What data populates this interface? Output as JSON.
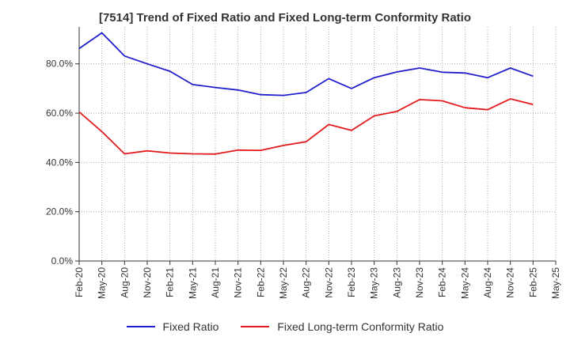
{
  "chart_data": {
    "type": "line",
    "title": "[7514]  Trend of Fixed Ratio and Fixed Long-term Conformity Ratio",
    "xlabel": "",
    "ylabel": "",
    "x": [
      "Feb-20",
      "May-20",
      "Aug-20",
      "Nov-20",
      "Feb-21",
      "May-21",
      "Aug-21",
      "Nov-21",
      "Feb-22",
      "May-22",
      "Aug-22",
      "Nov-22",
      "Feb-23",
      "May-23",
      "Aug-23",
      "Nov-23",
      "Feb-24",
      "May-24",
      "Aug-24",
      "Nov-24",
      "Feb-25",
      "May-25"
    ],
    "ylim": [
      0,
      95
    ],
    "yticks": [
      0,
      20,
      40,
      60,
      80
    ],
    "ytick_labels": [
      "0.0%",
      "20.0%",
      "40.0%",
      "60.0%",
      "80.0%"
    ],
    "grid": true,
    "legend_position": "bottom",
    "series": [
      {
        "name": "Fixed Ratio",
        "color": "#1f1fcc",
        "values": [
          86.2,
          92.6,
          83.2,
          80.0,
          77.0,
          71.6,
          70.4,
          69.4,
          67.5,
          67.2,
          68.4,
          74.0,
          70.0,
          74.4,
          76.7,
          78.3,
          76.6,
          76.3,
          74.4,
          78.3,
          75.0,
          null
        ]
      },
      {
        "name": "Fixed Long-term Conformity Ratio",
        "color": "#e31a1c",
        "values": [
          60.5,
          52.5,
          43.5,
          44.7,
          43.8,
          43.5,
          43.4,
          45.0,
          44.9,
          46.9,
          48.4,
          55.4,
          53.0,
          58.9,
          60.7,
          65.5,
          65.0,
          62.2,
          61.4,
          65.8,
          63.5,
          null
        ]
      }
    ]
  }
}
